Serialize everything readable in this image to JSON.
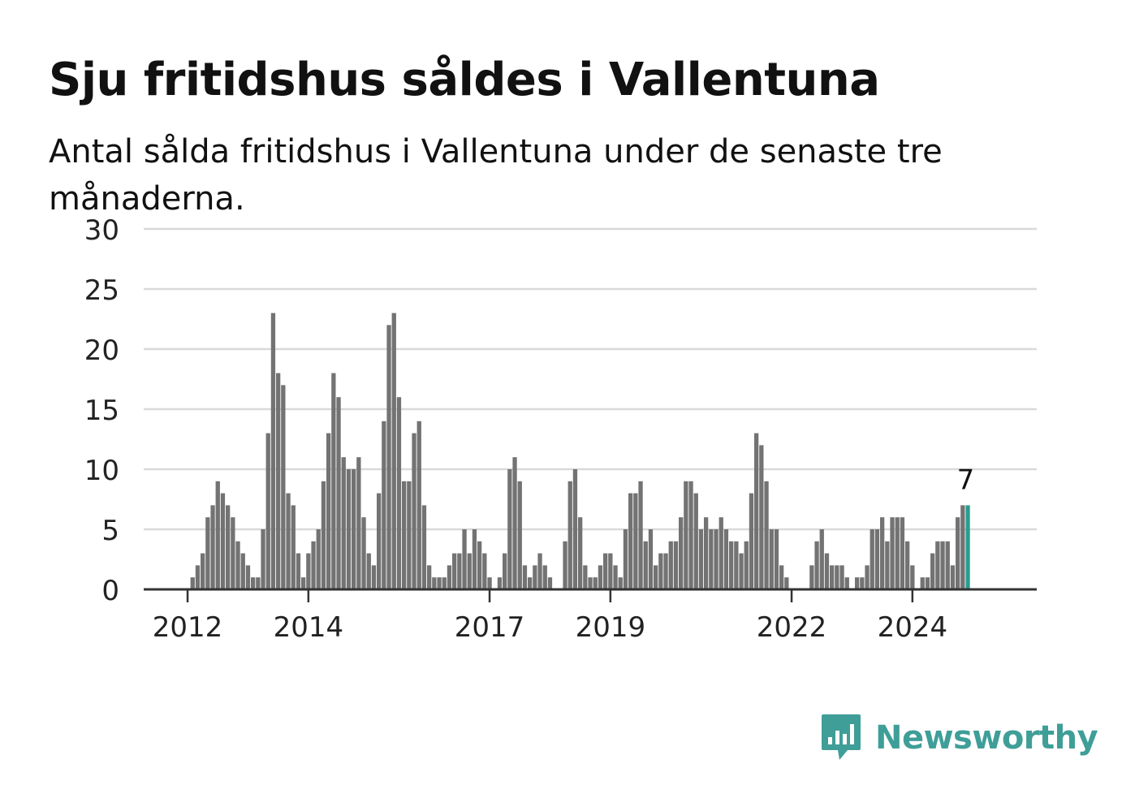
{
  "title": "Sju fritidshus såldes i Vallentuna",
  "subtitle": "Antal sålda fritidshus i Vallentuna under de senaste tre månaderna.",
  "brand": {
    "name": "Newsworthy",
    "icon": "bar-chart-speech-bubble-icon",
    "color": "#3f9e98"
  },
  "colors": {
    "bar": "#737373",
    "highlight": "#2a9d8f",
    "grid": "#d9d9d9",
    "axis": "#333333"
  },
  "chart_data": {
    "type": "bar",
    "x_start": "2012-01",
    "frequency": "monthly",
    "ylim": [
      0,
      30
    ],
    "yticks": [
      0,
      5,
      10,
      15,
      20,
      25,
      30
    ],
    "xticks": [
      {
        "label": "2012",
        "index": 0
      },
      {
        "label": "2014",
        "index": 24
      },
      {
        "label": "2017",
        "index": 60
      },
      {
        "label": "2019",
        "index": 84
      },
      {
        "label": "2022",
        "index": 120
      },
      {
        "label": "2024",
        "index": 144
      }
    ],
    "values": [
      0,
      1,
      2,
      3,
      6,
      7,
      9,
      8,
      7,
      6,
      4,
      3,
      2,
      1,
      1,
      5,
      13,
      23,
      18,
      17,
      8,
      7,
      3,
      1,
      3,
      4,
      5,
      9,
      13,
      18,
      16,
      11,
      10,
      10,
      11,
      6,
      3,
      2,
      8,
      14,
      22,
      23,
      16,
      9,
      9,
      13,
      14,
      7,
      2,
      1,
      1,
      1,
      2,
      3,
      3,
      5,
      3,
      5,
      4,
      3,
      1,
      0,
      1,
      3,
      10,
      11,
      9,
      2,
      1,
      2,
      3,
      2,
      1,
      0,
      0,
      4,
      9,
      10,
      6,
      2,
      1,
      1,
      2,
      3,
      3,
      2,
      1,
      5,
      8,
      8,
      9,
      4,
      5,
      2,
      3,
      3,
      4,
      4,
      6,
      9,
      9,
      8,
      5,
      6,
      5,
      5,
      6,
      5,
      4,
      4,
      3,
      4,
      8,
      13,
      12,
      9,
      5,
      5,
      2,
      1,
      0,
      0,
      0,
      0,
      2,
      4,
      5,
      3,
      2,
      2,
      2,
      1,
      0,
      1,
      1,
      2,
      5,
      5,
      6,
      4,
      6,
      6,
      6,
      4,
      2,
      0,
      1,
      1,
      3,
      4,
      4,
      4,
      2,
      6,
      7,
      7
    ],
    "highlight_index": 155,
    "highlight_label": "7"
  }
}
